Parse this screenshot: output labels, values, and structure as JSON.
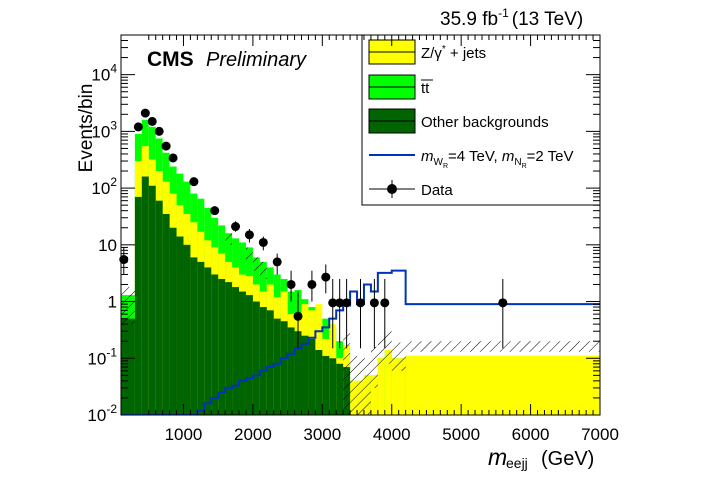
{
  "header": {
    "lumi_value": "35.9 fb",
    "lumi_exp": "-1",
    "lumi_energy": "(13 TeV)",
    "cms_label": "CMS",
    "prelim_label": "Preliminary"
  },
  "legend": {
    "zjets": {
      "pre": "Z/",
      "gamma": "γ",
      "star": "*",
      "post": " + jets"
    },
    "ttbar": "tt",
    "other": "Other backgrounds",
    "signal": {
      "m": "m",
      "sub1": "W",
      "sub1sub": "R",
      "val1": "=4 TeV, ",
      "sub2": "N",
      "sub2sub": "R",
      "val2": "=2 TeV"
    },
    "data": "Data"
  },
  "chart_data": {
    "type": "histogram",
    "title": "35.9 fb-1 (13 TeV)",
    "xlabel": "m_eejj (GeV)",
    "ylabel": "Events/bin",
    "xlim": [
      100,
      7000
    ],
    "ylim": [
      0.01,
      50000
    ],
    "yscale": "log",
    "xticks": [
      1000,
      2000,
      3000,
      4000,
      5000,
      6000,
      7000
    ],
    "yticks": [
      {
        "value": 0.01,
        "label": "10",
        "exp": "-2"
      },
      {
        "value": 0.1,
        "label": "10",
        "exp": "-1"
      },
      {
        "value": 1,
        "label": "1",
        "exp": ""
      },
      {
        "value": 10,
        "label": "10",
        "exp": ""
      },
      {
        "value": 100,
        "label": "10",
        "exp": "2"
      },
      {
        "value": 1000,
        "label": "10",
        "exp": "3"
      },
      {
        "value": 10000,
        "label": "10",
        "exp": "4"
      }
    ],
    "colors": {
      "zjets": "#ffff00",
      "ttbar": "#00ff00",
      "other": "#006400",
      "signal": "#0033bb",
      "data": "#000000"
    },
    "bin_edges": [
      100,
      300,
      400,
      500,
      600,
      700,
      800,
      900,
      1000,
      1100,
      1200,
      1300,
      1400,
      1500,
      1600,
      1700,
      1800,
      1900,
      2000,
      2100,
      2200,
      2300,
      2400,
      2500,
      2600,
      2700,
      2800,
      2900,
      3000,
      3100,
      3200,
      3300,
      3400,
      3500,
      3600,
      3700,
      3800,
      3900,
      4000,
      4200,
      7000
    ],
    "series": [
      {
        "name": "Other backgrounds",
        "cumulative": [
          0.5,
          70,
          160,
          110,
          60,
          35,
          20,
          14,
          10,
          6,
          5,
          4,
          3,
          2.5,
          2.2,
          1.8,
          1.5,
          1.3,
          1,
          0.8,
          0.7,
          0.5,
          0.45,
          0.35,
          0.3,
          0.25,
          0.22,
          0.14,
          0.11,
          0.1,
          0.08,
          0.07,
          0.01,
          0.01,
          0.01,
          0.01,
          0.01,
          0.01,
          0.01,
          0.01
        ]
      },
      {
        "name": "Z/gamma* + jets",
        "cumulative": [
          0.02,
          300,
          550,
          320,
          200,
          130,
          80,
          50,
          35,
          25,
          17,
          12,
          9,
          7,
          5,
          4,
          3,
          2.8,
          2,
          1.5,
          2,
          1.2,
          1.5,
          0.6,
          0.5,
          0.9,
          0.7,
          0.9,
          0.22,
          0.4,
          0.1,
          0.17,
          0.04,
          0.04,
          0.05,
          0.05,
          0.1,
          0.14,
          0.1,
          0.11
        ]
      },
      {
        "name": "ttbar",
        "cumulative": [
          1.3,
          900,
          1600,
          1200,
          750,
          420,
          240,
          180,
          130,
          80,
          65,
          45,
          30,
          22,
          16,
          13,
          11,
          9,
          6,
          5,
          4,
          3,
          2.5,
          1.5,
          1.6,
          1.1,
          0.8,
          0.45,
          0.5,
          0.35,
          0.2,
          0.17,
          0.04,
          0.04,
          0.05,
          0.05,
          0.1,
          0.14,
          0.1,
          0.11
        ]
      },
      {
        "name": "mWR=4 TeV, mNR=2 TeV",
        "values": [
          0.01,
          0.01,
          0.01,
          0.01,
          0.01,
          0.01,
          0.01,
          0.01,
          0.01,
          0.01,
          0.012,
          0.016,
          0.02,
          0.025,
          0.03,
          0.033,
          0.04,
          0.045,
          0.05,
          0.06,
          0.07,
          0.08,
          0.1,
          0.12,
          0.15,
          0.18,
          0.23,
          0.3,
          0.35,
          0.5,
          0.7,
          0.85,
          1.5,
          0.9,
          2.0,
          1.5,
          3.2,
          3.2,
          3.5,
          0.9
        ]
      }
    ],
    "hatch_bins": [
      {
        "x0": 100,
        "x1": 300,
        "lo": 0.4,
        "hi": 1.8
      },
      {
        "x0": 3300,
        "x1": 3400,
        "lo": 0.01,
        "hi": 0.28
      },
      {
        "x0": 3400,
        "x1": 3500,
        "lo": 0.01,
        "hi": 0.11
      },
      {
        "x0": 3500,
        "x1": 3600,
        "lo": 0.01,
        "hi": 0.11
      },
      {
        "x0": 3600,
        "x1": 3700,
        "lo": 0.01,
        "hi": 0.1
      },
      {
        "x0": 3700,
        "x1": 3800,
        "lo": 0.03,
        "hi": 0.16
      },
      {
        "x0": 3800,
        "x1": 3900,
        "lo": 0.07,
        "hi": 0.25
      },
      {
        "x0": 3900,
        "x1": 4000,
        "lo": 0.08,
        "hi": 0.3
      },
      {
        "x0": 4000,
        "x1": 4200,
        "lo": 0.06,
        "hi": 0.19
      },
      {
        "x0": 4200,
        "x1": 7000,
        "lo": 0.13,
        "hi": 0.2
      },
      {
        "x0": 1600,
        "x1": 1700,
        "lo": 10,
        "hi": 18
      },
      {
        "x0": 1900,
        "x1": 2000,
        "lo": 5,
        "hi": 9
      },
      {
        "x0": 2000,
        "x1": 2100,
        "lo": 3.5,
        "hi": 6
      },
      {
        "x0": 2100,
        "x1": 2200,
        "lo": 2.5,
        "hi": 5
      }
    ],
    "data_points": [
      {
        "x": 140,
        "y": 5.5,
        "lo": 3,
        "hi": 9
      },
      {
        "x": 350,
        "y": 1200,
        "lo": 1100,
        "hi": 1300
      },
      {
        "x": 450,
        "y": 2100,
        "lo": 2000,
        "hi": 2250
      },
      {
        "x": 550,
        "y": 1500,
        "lo": 1400,
        "hi": 1600
      },
      {
        "x": 650,
        "y": 1000,
        "lo": 940,
        "hi": 1060
      },
      {
        "x": 750,
        "y": 550,
        "lo": 510,
        "hi": 590
      },
      {
        "x": 850,
        "y": 340,
        "lo": 310,
        "hi": 370
      },
      {
        "x": 1150,
        "y": 130,
        "lo": 115,
        "hi": 145
      },
      {
        "x": 1450,
        "y": 40,
        "lo": 34,
        "hi": 47
      },
      {
        "x": 1750,
        "y": 21,
        "lo": 17,
        "hi": 26
      },
      {
        "x": 1950,
        "y": 15,
        "lo": 11,
        "hi": 19
      },
      {
        "x": 2150,
        "y": 11,
        "lo": 8,
        "hi": 14
      },
      {
        "x": 2350,
        "y": 5,
        "lo": 3,
        "hi": 7
      },
      {
        "x": 2550,
        "y": 2,
        "lo": 1,
        "hi": 3.5
      },
      {
        "x": 2650,
        "y": 0.55,
        "lo": 0.15,
        "hi": 1.5
      },
      {
        "x": 2850,
        "y": 2,
        "lo": 1,
        "hi": 3.5
      },
      {
        "x": 3050,
        "y": 2.7,
        "lo": 1.4,
        "hi": 4.5
      },
      {
        "x": 3150,
        "y": 0.95,
        "lo": 0.15,
        "hi": 2.5
      },
      {
        "x": 3250,
        "y": 0.95,
        "lo": 0.15,
        "hi": 2.5
      },
      {
        "x": 3350,
        "y": 0.95,
        "lo": 0.15,
        "hi": 2.5
      },
      {
        "x": 3550,
        "y": 0.95,
        "lo": 0.15,
        "hi": 2.5
      },
      {
        "x": 3750,
        "y": 0.95,
        "lo": 0.15,
        "hi": 2.5
      },
      {
        "x": 3900,
        "y": 0.95,
        "lo": 0.15,
        "hi": 2.5
      },
      {
        "x": 5600,
        "y": 0.95,
        "lo": 0.15,
        "hi": 2.5
      }
    ],
    "legend_position": "top-right"
  }
}
